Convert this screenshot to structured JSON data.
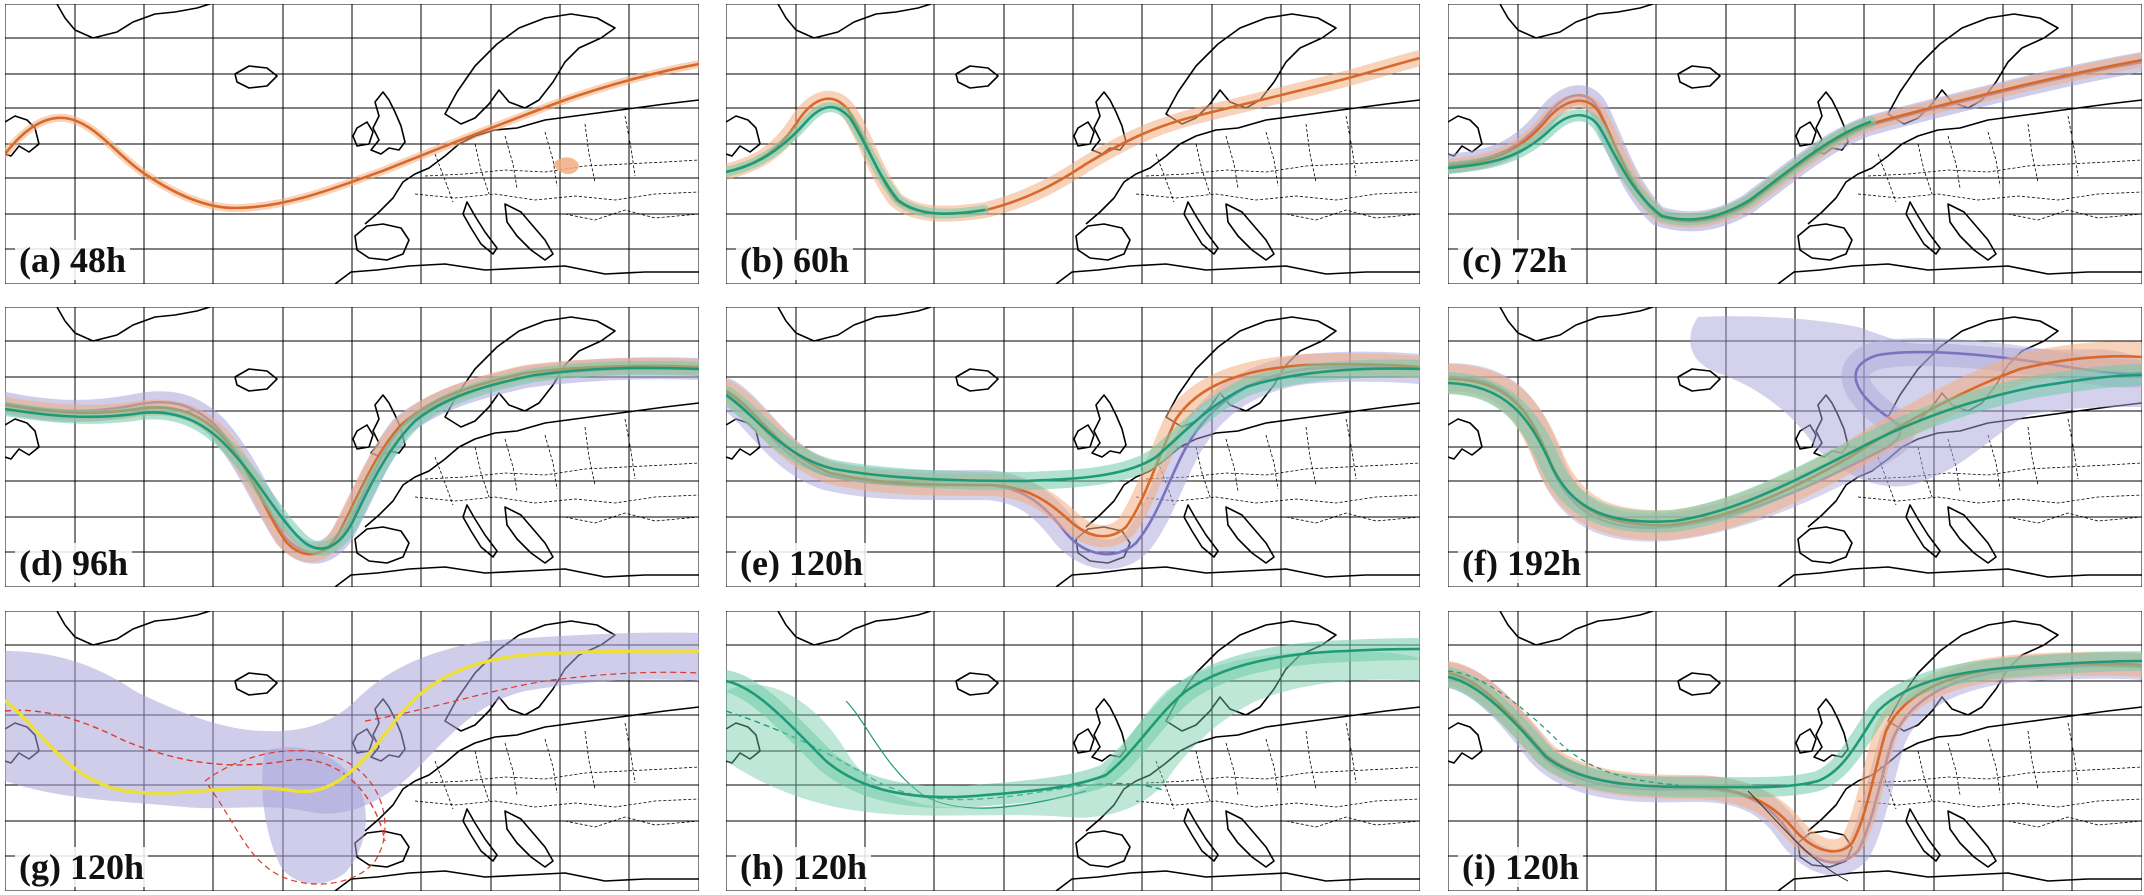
{
  "figure": {
    "panels": [
      {
        "id": "a",
        "label": "(a) 48h"
      },
      {
        "id": "b",
        "label": "(b) 60h"
      },
      {
        "id": "c",
        "label": "(c) 72h"
      },
      {
        "id": "d",
        "label": "(d) 96h"
      },
      {
        "id": "e",
        "label": "(e) 120h"
      },
      {
        "id": "f",
        "label": "(f) 192h"
      },
      {
        "id": "g",
        "label": "(g) 120h"
      },
      {
        "id": "h",
        "label": "(h) 120h"
      },
      {
        "id": "i",
        "label": "(i) 120h"
      }
    ]
  },
  "colors": {
    "orange": "#d9692a",
    "orange_band": "#f2ad80",
    "green": "#1f9a78",
    "green_band": "#6fcaa8",
    "purple": "#7b73bf",
    "purple_band": "#a8a4d9",
    "yellow": "#ecdf3a",
    "red_dashed": "#d93a2a",
    "coastline": "#000000",
    "grid": "#000000"
  }
}
